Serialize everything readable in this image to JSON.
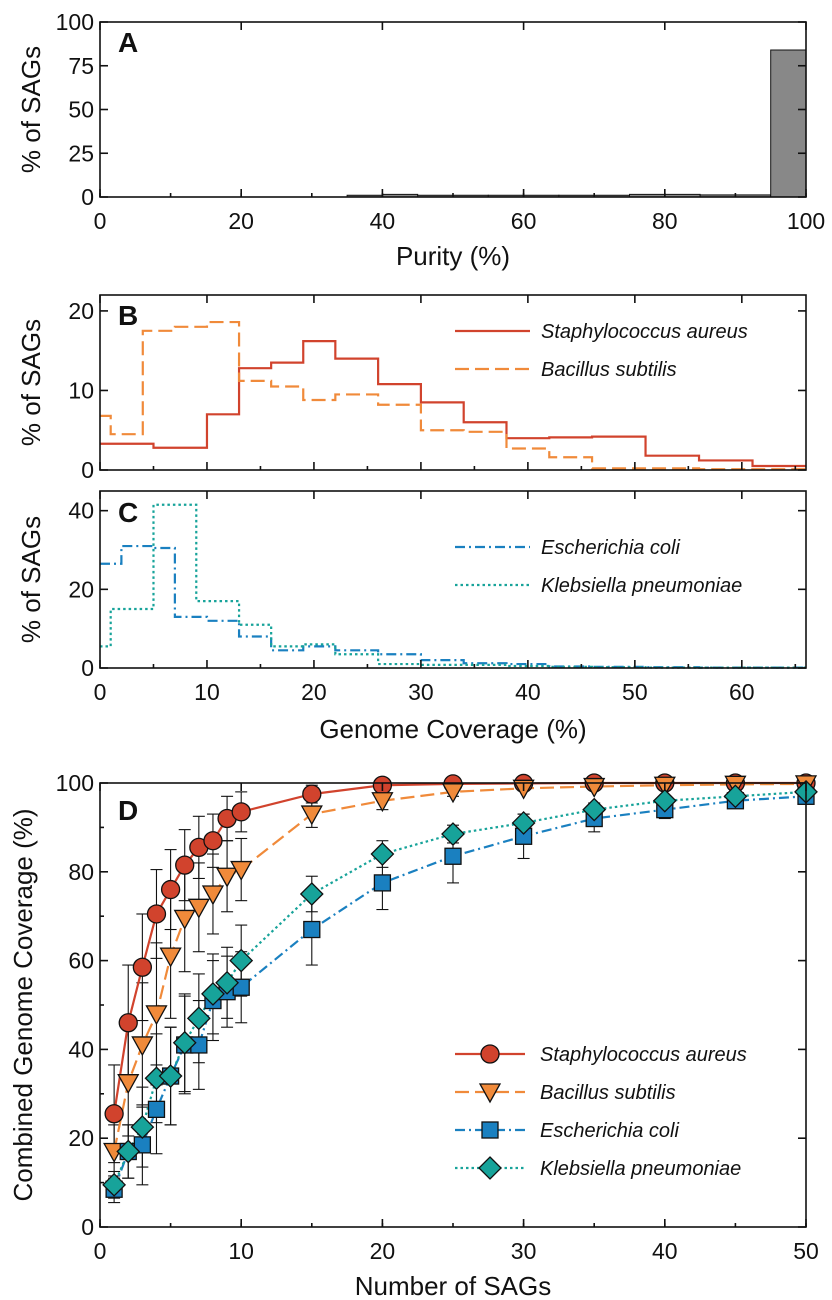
{
  "chart_data": [
    {
      "panel": "A",
      "type": "bar",
      "xlabel": "Purity (%)",
      "ylabel": "% of SAGs",
      "xlim": [
        0,
        100
      ],
      "ylim": [
        0,
        100
      ],
      "xticks": [
        0,
        20,
        40,
        60,
        80,
        100
      ],
      "yticks": [
        0,
        25,
        50,
        75,
        100
      ],
      "bins": [
        [
          0,
          5
        ],
        [
          5,
          10
        ],
        [
          10,
          15
        ],
        [
          15,
          20
        ],
        [
          20,
          25
        ],
        [
          25,
          30
        ],
        [
          30,
          35
        ],
        [
          35,
          40
        ],
        [
          40,
          45
        ],
        [
          45,
          50
        ],
        [
          50,
          55
        ],
        [
          55,
          60
        ],
        [
          60,
          65
        ],
        [
          65,
          70
        ],
        [
          70,
          75
        ],
        [
          75,
          80
        ],
        [
          80,
          85
        ],
        [
          85,
          90
        ],
        [
          90,
          95
        ],
        [
          95,
          100
        ]
      ],
      "values": [
        0,
        0,
        0,
        0,
        0,
        0,
        0,
        1,
        1.5,
        1,
        1,
        1,
        1,
        1,
        1,
        1.5,
        1.5,
        1.2,
        1.2,
        84
      ],
      "color": "#888888"
    },
    {
      "panel": "B",
      "type": "step",
      "xlabel": "",
      "ylabel": "% of SAGs",
      "xlim": [
        0,
        66
      ],
      "ylim": [
        0,
        22
      ],
      "yticks": [
        0,
        10,
        20
      ],
      "legend_position": "top-right",
      "series": [
        {
          "name": "Staphylococcus aureus",
          "color": "#d1432d",
          "dash": "solid",
          "edges": [
            0,
            5,
            10,
            13,
            16,
            19,
            22,
            26,
            30,
            34,
            38,
            42,
            46,
            51,
            56,
            61,
            66
          ],
          "values": [
            3.3,
            2.8,
            7,
            12.8,
            13.5,
            16.2,
            14,
            10.8,
            8.5,
            6,
            4,
            4.1,
            4.2,
            1.8,
            1.2,
            0.5
          ]
        },
        {
          "name": "Bacillus subtilis",
          "color": "#f08a3a",
          "dash": "long-dash",
          "edges": [
            0,
            1,
            4,
            7,
            10,
            13,
            16,
            19,
            22,
            26,
            30,
            34,
            38,
            42,
            46,
            51,
            56,
            61,
            66
          ],
          "values": [
            6.8,
            4.5,
            17.5,
            18,
            18.6,
            11.2,
            10.5,
            8.8,
            9.5,
            8.2,
            5,
            4.8,
            2.7,
            1.6,
            0.2,
            0.2,
            0.1,
            0.1
          ]
        }
      ]
    },
    {
      "panel": "C",
      "type": "step",
      "xlabel": "Genome Coverage (%)",
      "ylabel": "% of SAGs",
      "xlim": [
        0,
        66
      ],
      "ylim": [
        0,
        45
      ],
      "xticks": [
        0,
        10,
        20,
        30,
        40,
        50,
        60
      ],
      "yticks": [
        0,
        20,
        40
      ],
      "legend_position": "top-right",
      "series": [
        {
          "name": "Escherichia coli",
          "color": "#1a80c0",
          "dash": "dash-dot",
          "edges": [
            0,
            2,
            5,
            7,
            10,
            13,
            16,
            19,
            22,
            26,
            30,
            34,
            38,
            42,
            46,
            51,
            56,
            61,
            66
          ],
          "values": [
            26.5,
            31,
            30.5,
            13,
            12,
            8,
            4.5,
            5.5,
            4.5,
            3.5,
            2,
            1.2,
            1,
            0.4,
            0.3,
            0.2,
            0.1,
            0.1
          ]
        },
        {
          "name": "Klebsiella pneumoniae",
          "color": "#17a39a",
          "dash": "dotted",
          "edges": [
            0,
            1,
            3,
            5,
            7,
            9,
            13,
            16,
            19,
            22,
            26,
            30,
            34,
            38,
            42,
            46,
            51,
            56,
            61,
            66
          ],
          "values": [
            5.5,
            15,
            15,
            41.5,
            41.5,
            17,
            11,
            5.5,
            6,
            3.5,
            1,
            0.8,
            0.8,
            0.5,
            0.3,
            0.2,
            0.1,
            0.1,
            0.1
          ]
        }
      ]
    },
    {
      "panel": "D",
      "type": "line",
      "xlabel": "Number of SAGs",
      "ylabel": "Combined Genome Coverage (%)",
      "xlim": [
        0,
        50
      ],
      "ylim": [
        0,
        100
      ],
      "xticks": [
        0,
        10,
        20,
        30,
        40,
        50
      ],
      "yticks": [
        0,
        20,
        40,
        60,
        80,
        100
      ],
      "legend_position": "bottom-right",
      "x": [
        1,
        2,
        3,
        4,
        5,
        6,
        7,
        8,
        9,
        10,
        15,
        20,
        25,
        30,
        35,
        40,
        45,
        50
      ],
      "series": [
        {
          "name": "Staphylococcus aureus",
          "color": "#d1432d",
          "marker": "circle",
          "dash": "solid",
          "values": [
            25.5,
            46,
            58.5,
            70.5,
            76,
            81.5,
            85.5,
            87,
            92,
            93.5,
            97.5,
            99.5,
            99.8,
            99.9,
            100,
            100,
            100,
            100
          ],
          "errors": [
            11,
            13,
            12,
            10,
            9,
            8,
            7,
            6,
            5,
            4.5,
            2,
            1,
            0.5,
            0.3,
            0.2,
            0.2,
            0.2,
            0.2
          ]
        },
        {
          "name": "Bacillus subtilis",
          "color": "#f08a3a",
          "marker": "triangle-down",
          "dash": "long-dash",
          "values": [
            17,
            32.5,
            41,
            48,
            61,
            69.5,
            72,
            75,
            79,
            80.5,
            93,
            96,
            98,
            98.8,
            99.2,
            99.5,
            99.7,
            99.8
          ],
          "errors": [
            6,
            12,
            14,
            16,
            14,
            12,
            10,
            9,
            8,
            7,
            3,
            2,
            1,
            0.5,
            0.3,
            0.2,
            0.2,
            0.2
          ]
        },
        {
          "name": "Escherichia coli",
          "color": "#1a80c0",
          "marker": "square",
          "dash": "dash-dot",
          "values": [
            8.5,
            17,
            18.5,
            26.5,
            34,
            41,
            41,
            51,
            53,
            54,
            67,
            77.5,
            83.5,
            88,
            92,
            94,
            96,
            97
          ],
          "errors": [
            3,
            6,
            9,
            10,
            11,
            11,
            10,
            9,
            8,
            8,
            8,
            6,
            6,
            5,
            3,
            2,
            1.5,
            1
          ]
        },
        {
          "name": "Klebsiella pneumoniae",
          "color": "#17a39a",
          "marker": "diamond",
          "dash": "dotted",
          "values": [
            9.5,
            17,
            22.5,
            33.5,
            34,
            41.5,
            47,
            52.5,
            55,
            60,
            75,
            84,
            88.5,
            91,
            94,
            96,
            97,
            98
          ],
          "errors": [
            3,
            6,
            9,
            10,
            11,
            11,
            10,
            9,
            8,
            8,
            4,
            3,
            2,
            2,
            1.5,
            1,
            1,
            1
          ]
        }
      ]
    }
  ]
}
